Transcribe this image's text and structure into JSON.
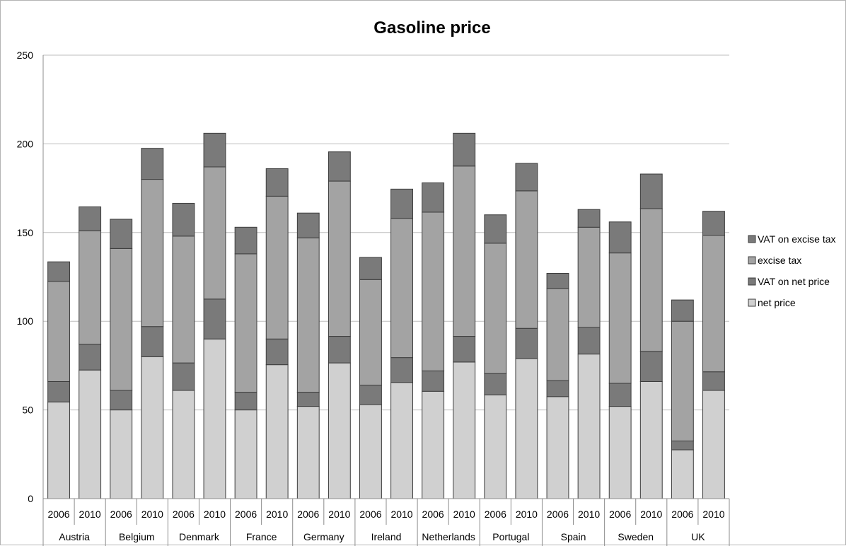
{
  "chart_data": {
    "type": "bar",
    "stacked": true,
    "title": "Gasoline price",
    "xlabel": "",
    "ylabel": "",
    "ylim": [
      0,
      250
    ],
    "yticks": [
      0,
      50,
      100,
      150,
      200,
      250
    ],
    "grid": true,
    "legend_position": "right",
    "groups": [
      "Austria",
      "Belgium",
      "Denmark",
      "France",
      "Germany",
      "Ireland",
      "Netherlands",
      "Portugal",
      "Spain",
      "Sweden",
      "UK"
    ],
    "subcategories": [
      "2006",
      "2010"
    ],
    "categories": [
      "Austria 2006",
      "Austria 2010",
      "Belgium 2006",
      "Belgium 2010",
      "Denmark 2006",
      "Denmark 2010",
      "France 2006",
      "France 2010",
      "Germany 2006",
      "Germany 2010",
      "Ireland 2006",
      "Ireland 2010",
      "Netherlands 2006",
      "Netherlands 2010",
      "Portugal 2006",
      "Portugal 2010",
      "Spain 2006",
      "Spain 2010",
      "Sweden 2006",
      "Sweden 2010",
      "UK 2006",
      "UK 2010"
    ],
    "series": [
      {
        "name": "net price",
        "color": "#d0d0d0",
        "values": [
          54.5,
          72.5,
          50,
          80,
          61,
          90,
          50,
          75.5,
          52,
          76.5,
          53,
          65.5,
          60.5,
          77,
          58.5,
          79,
          57.5,
          81.5,
          52,
          66,
          27.5,
          61
        ]
      },
      {
        "name": "VAT on net price",
        "color": "#7a7a7a",
        "values": [
          11.5,
          14.5,
          11,
          17,
          15.5,
          22.5,
          10,
          14.5,
          8,
          15,
          11,
          14,
          11.5,
          14.5,
          12,
          17,
          9,
          15,
          13,
          17,
          5,
          10.5
        ]
      },
      {
        "name": "excise tax",
        "color": "#a3a3a3",
        "values": [
          56.5,
          64,
          80,
          83,
          71.5,
          74.5,
          78,
          80.5,
          87,
          87.5,
          59.5,
          78.5,
          89.5,
          96,
          73.5,
          77.5,
          52,
          56.5,
          73.5,
          80.5,
          67.5,
          77
        ]
      },
      {
        "name": "VAT on excise tax",
        "color": "#7a7a7a",
        "values": [
          11,
          13.5,
          16.5,
          17.5,
          18.5,
          19,
          15,
          15.5,
          14,
          16.5,
          12.5,
          16.5,
          16.5,
          18.5,
          16,
          15.5,
          8.5,
          10,
          17.5,
          19.5,
          12,
          13.5
        ]
      }
    ],
    "legend_order": [
      "VAT on excise tax",
      "excise tax",
      "VAT on net price",
      "net price"
    ]
  }
}
